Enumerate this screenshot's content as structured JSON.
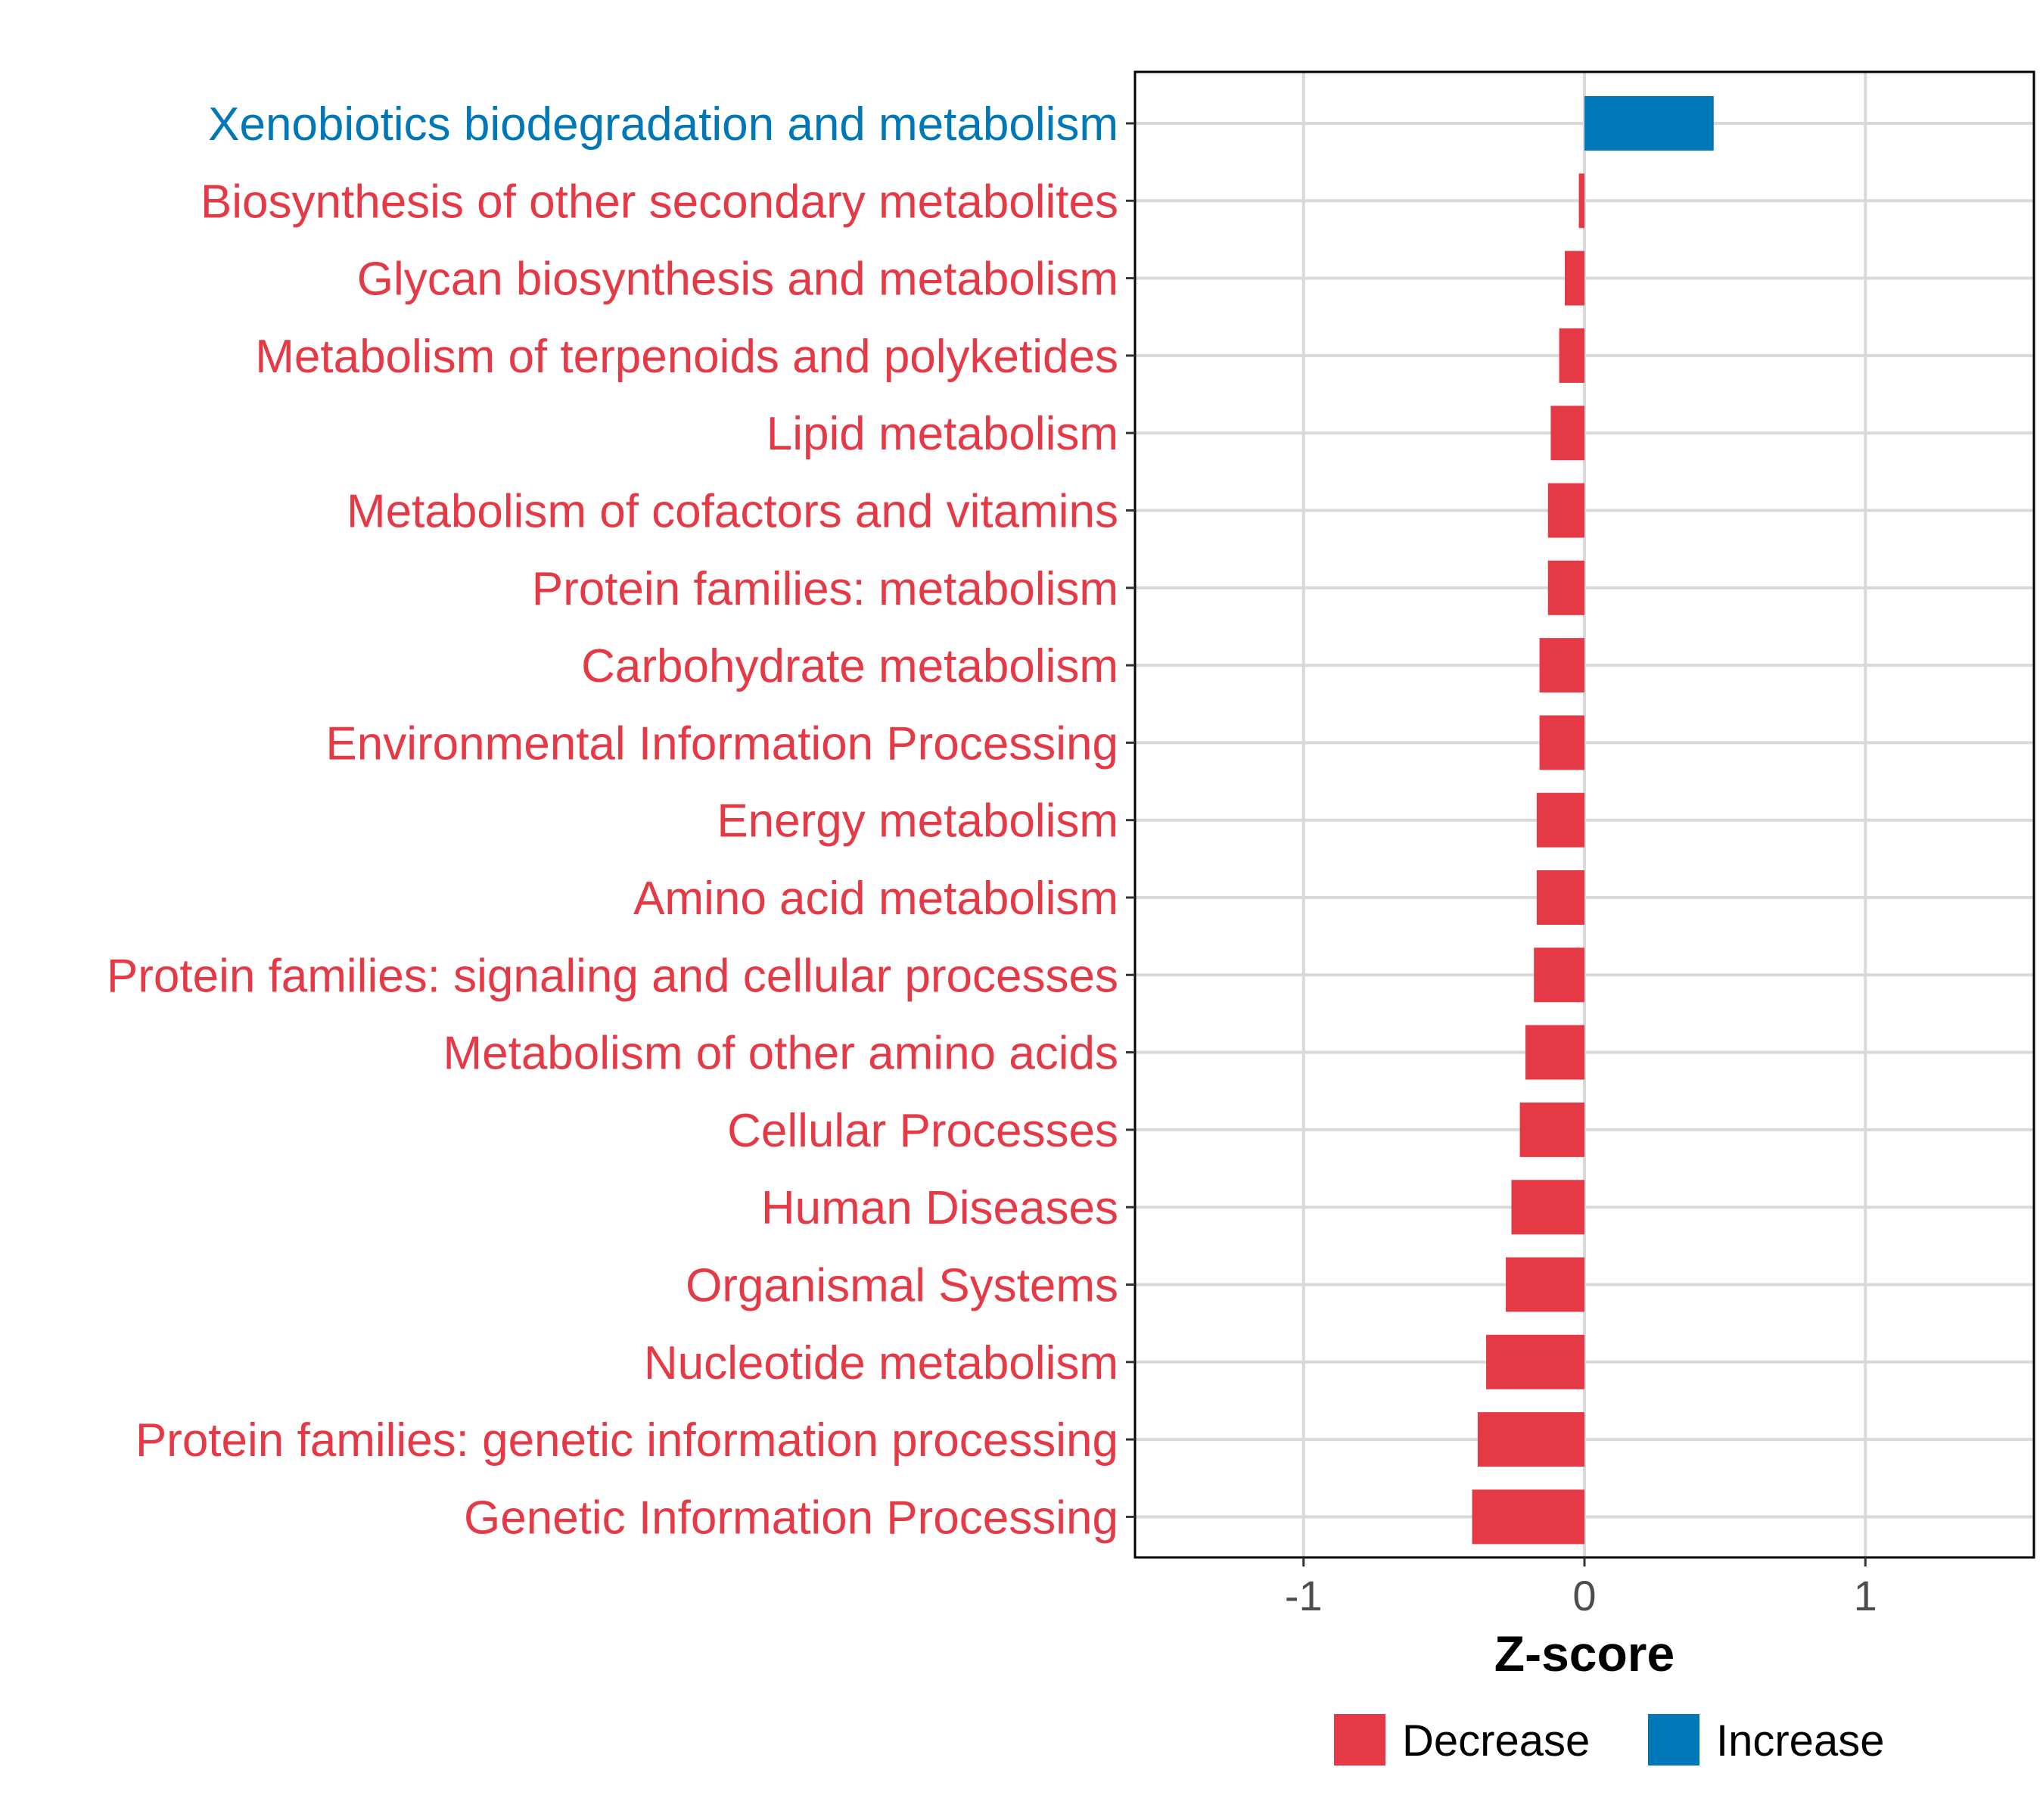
{
  "colors": {
    "decrease": "#E63946",
    "increase": "#0077B6",
    "grid": "#D9D9D9",
    "panel_border": "#000000",
    "tick_text": "#4D4D4D"
  },
  "chart_data": {
    "type": "bar",
    "orientation": "horizontal",
    "title": "",
    "xlabel": "Z-score",
    "ylabel": "",
    "xlim": [
      -1.6,
      1.6
    ],
    "x_ticks": [
      -1,
      0,
      1
    ],
    "x_tick_labels": [
      "-1",
      "0",
      "1"
    ],
    "grid": true,
    "legend_position": "bottom",
    "categories": [
      "Xenobiotics biodegradation and metabolism",
      "Biosynthesis of other secondary metabolites",
      "Glycan biosynthesis and metabolism",
      "Metabolism of terpenoids and polyketides",
      "Lipid metabolism",
      "Metabolism of cofactors and vitamins",
      "Protein families: metabolism",
      "Carbohydrate metabolism",
      "Environmental Information Processing",
      "Energy metabolism",
      "Amino acid metabolism",
      "Protein families: signaling and cellular processes",
      "Metabolism of other amino acids",
      "Cellular Processes",
      "Human Diseases",
      "Organismal Systems",
      "Nucleotide metabolism",
      "Protein families: genetic information processing",
      "Genetic Information Processing"
    ],
    "values": [
      0.46,
      -0.02,
      -0.07,
      -0.09,
      -0.12,
      -0.13,
      -0.13,
      -0.16,
      -0.16,
      -0.17,
      -0.17,
      -0.18,
      -0.21,
      -0.23,
      -0.26,
      -0.28,
      -0.35,
      -0.38,
      -0.4
    ],
    "groups": [
      "Increase",
      "Decrease",
      "Decrease",
      "Decrease",
      "Decrease",
      "Decrease",
      "Decrease",
      "Decrease",
      "Decrease",
      "Decrease",
      "Decrease",
      "Decrease",
      "Decrease",
      "Decrease",
      "Decrease",
      "Decrease",
      "Decrease",
      "Decrease",
      "Decrease"
    ],
    "legend": [
      {
        "label": "Decrease",
        "color": "#E63946"
      },
      {
        "label": "Increase",
        "color": "#0077B6"
      }
    ]
  }
}
